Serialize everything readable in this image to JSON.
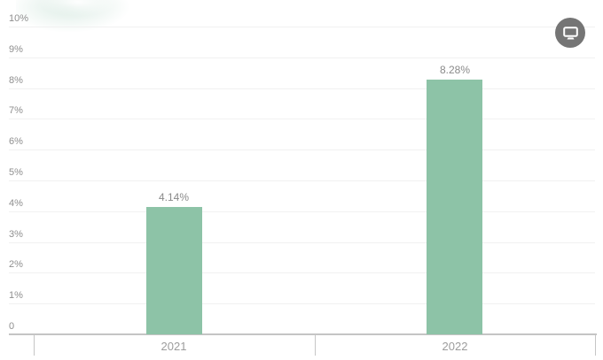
{
  "chart_data": {
    "type": "bar",
    "categories": [
      "2021",
      "2022"
    ],
    "values": [
      4.14,
      8.28
    ],
    "value_labels": [
      "4.14%",
      "8.28%"
    ],
    "title": "",
    "xlabel": "",
    "ylabel": "",
    "ylim": [
      0,
      10
    ],
    "ytick_values": [
      0,
      1,
      2,
      3,
      4,
      5,
      6,
      7,
      8,
      9,
      10
    ],
    "ytick_labels": [
      "0",
      "1%",
      "2%",
      "3%",
      "4%",
      "5%",
      "6%",
      "7%",
      "8%",
      "9%",
      "10%"
    ],
    "grid": true,
    "legend_position": "none"
  },
  "toolbar": {
    "button_icon": "monitor-icon"
  },
  "colors": {
    "bar": "#8dc3a7",
    "grid_line": "#f1f1f1",
    "axis_line": "#c4c4c4",
    "tick_mark": "#c6c6c6",
    "ytick_label": "#8f8f8f",
    "value_label": "#8a8a8a",
    "category_label": "#9c9c9c",
    "button_bg": "#757575",
    "button_icon_color": "#ffffff"
  }
}
